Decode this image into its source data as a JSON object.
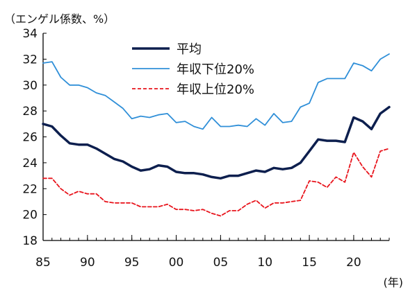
{
  "chart_data": {
    "type": "line",
    "ylabel": "（エンゲル係数、%）",
    "xunit": "(年)",
    "ylim": [
      18,
      34
    ],
    "yticks": [
      18,
      20,
      22,
      24,
      26,
      28,
      30,
      32,
      34
    ],
    "xlim": [
      1985,
      2024
    ],
    "xticks": [
      1985,
      1990,
      1995,
      2000,
      2005,
      2010,
      2015,
      2020
    ],
    "xtick_labels": [
      "85",
      "90",
      "95",
      "00",
      "05",
      "10",
      "15",
      "20"
    ],
    "grid": false,
    "legend_position": "top-center",
    "x": [
      1985,
      1986,
      1987,
      1988,
      1989,
      1990,
      1991,
      1992,
      1993,
      1994,
      1995,
      1996,
      1997,
      1998,
      1999,
      2000,
      2001,
      2002,
      2003,
      2004,
      2005,
      2006,
      2007,
      2008,
      2009,
      2010,
      2011,
      2012,
      2013,
      2014,
      2015,
      2016,
      2017,
      2018,
      2019,
      2020,
      2021,
      2022,
      2023,
      2024
    ],
    "series": [
      {
        "name": "平均",
        "color": "#0d1f4e",
        "style": "solid-thick",
        "values": [
          27.0,
          26.8,
          26.1,
          25.5,
          25.4,
          25.4,
          25.1,
          24.7,
          24.3,
          24.1,
          23.7,
          23.4,
          23.5,
          23.8,
          23.7,
          23.3,
          23.2,
          23.2,
          23.1,
          22.9,
          22.8,
          23.0,
          23.0,
          23.2,
          23.4,
          23.3,
          23.6,
          23.5,
          23.6,
          24.0,
          24.9,
          25.8,
          25.7,
          25.7,
          25.6,
          27.5,
          27.2,
          26.6,
          27.8,
          28.3
        ]
      },
      {
        "name": "年収下位20%",
        "color": "#2f8fd8",
        "style": "solid",
        "values": [
          31.7,
          31.8,
          30.6,
          30.0,
          30.0,
          29.8,
          29.4,
          29.2,
          28.7,
          28.2,
          27.4,
          27.6,
          27.5,
          27.7,
          27.8,
          27.1,
          27.2,
          26.8,
          26.6,
          27.5,
          26.8,
          26.8,
          26.9,
          26.8,
          27.4,
          26.9,
          27.8,
          27.1,
          27.2,
          28.3,
          28.6,
          30.2,
          30.5,
          30.5,
          30.5,
          31.7,
          31.5,
          31.1,
          32.0,
          32.4
        ]
      },
      {
        "name": "年収上位20%",
        "color": "#e8141c",
        "style": "dashed",
        "values": [
          22.8,
          22.8,
          22.0,
          21.5,
          21.8,
          21.6,
          21.6,
          21.0,
          20.9,
          20.9,
          20.9,
          20.6,
          20.6,
          20.6,
          20.8,
          20.4,
          20.4,
          20.3,
          20.4,
          20.1,
          19.9,
          20.3,
          20.3,
          20.8,
          21.1,
          20.5,
          20.9,
          20.9,
          21.0,
          21.1,
          22.6,
          22.5,
          22.1,
          22.9,
          22.5,
          24.8,
          23.7,
          22.9,
          24.9,
          25.1
        ]
      }
    ]
  }
}
